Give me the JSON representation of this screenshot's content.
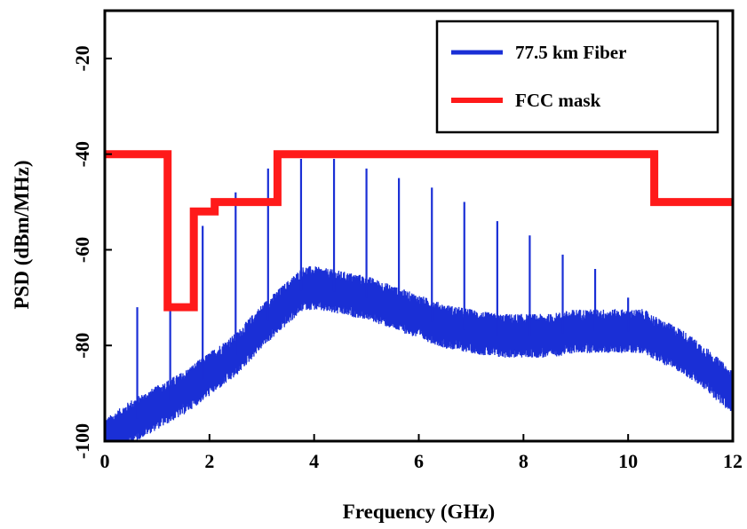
{
  "chart_data": {
    "type": "line",
    "xlabel": "Frequency (GHz)",
    "ylabel": "PSD (dBm/MHz)",
    "xlim": [
      0,
      12
    ],
    "ylim": [
      -100,
      -10
    ],
    "x_ticks": [
      "0",
      "2",
      "4",
      "6",
      "8",
      "10",
      "12"
    ],
    "y_ticks": [
      "-100",
      "-80",
      "-60",
      "-40",
      "-20"
    ],
    "grid": false,
    "legend_position": "top-right",
    "series": [
      {
        "name": "77.5 km Fiber",
        "color": "#1a2fd6",
        "noise_floor": {
          "x": [
            0,
            0.5,
            1.0,
            1.5,
            2.0,
            2.5,
            3.0,
            3.5,
            3.8,
            4.0,
            4.5,
            5.0,
            5.5,
            6.0,
            6.5,
            7.0,
            7.5,
            8.0,
            8.5,
            9.0,
            9.5,
            10.0,
            10.3,
            10.6,
            11.0,
            11.5,
            12.0
          ],
          "y": [
            -100,
            -96,
            -93,
            -90,
            -86,
            -82,
            -76,
            -71,
            -68,
            -68,
            -69,
            -70,
            -72,
            -74,
            -76,
            -77,
            -78,
            -78,
            -78,
            -77,
            -77,
            -77,
            -77,
            -79,
            -81,
            -85,
            -90
          ]
        },
        "spurs": {
          "x": [
            0.62,
            1.25,
            1.87,
            2.5,
            3.12,
            3.75,
            4.38,
            5.0,
            5.62,
            6.25,
            6.87,
            7.5,
            8.12,
            8.75,
            9.37,
            10.0
          ],
          "y": [
            -72,
            -62,
            -55,
            -48,
            -43,
            -41,
            -41,
            -43,
            -45,
            -47,
            -50,
            -54,
            -57,
            -61,
            -64,
            -70
          ]
        }
      },
      {
        "name": "FCC mask",
        "color": "#ff1a1a",
        "x": [
          0,
          1.2,
          1.2,
          1.7,
          1.7,
          2.1,
          2.1,
          3.3,
          3.3,
          10.5,
          10.5,
          12
        ],
        "y": [
          -40,
          -40,
          -72,
          -72,
          -52,
          -52,
          -50,
          -50,
          -40,
          -40,
          -50,
          -50
        ]
      }
    ]
  }
}
